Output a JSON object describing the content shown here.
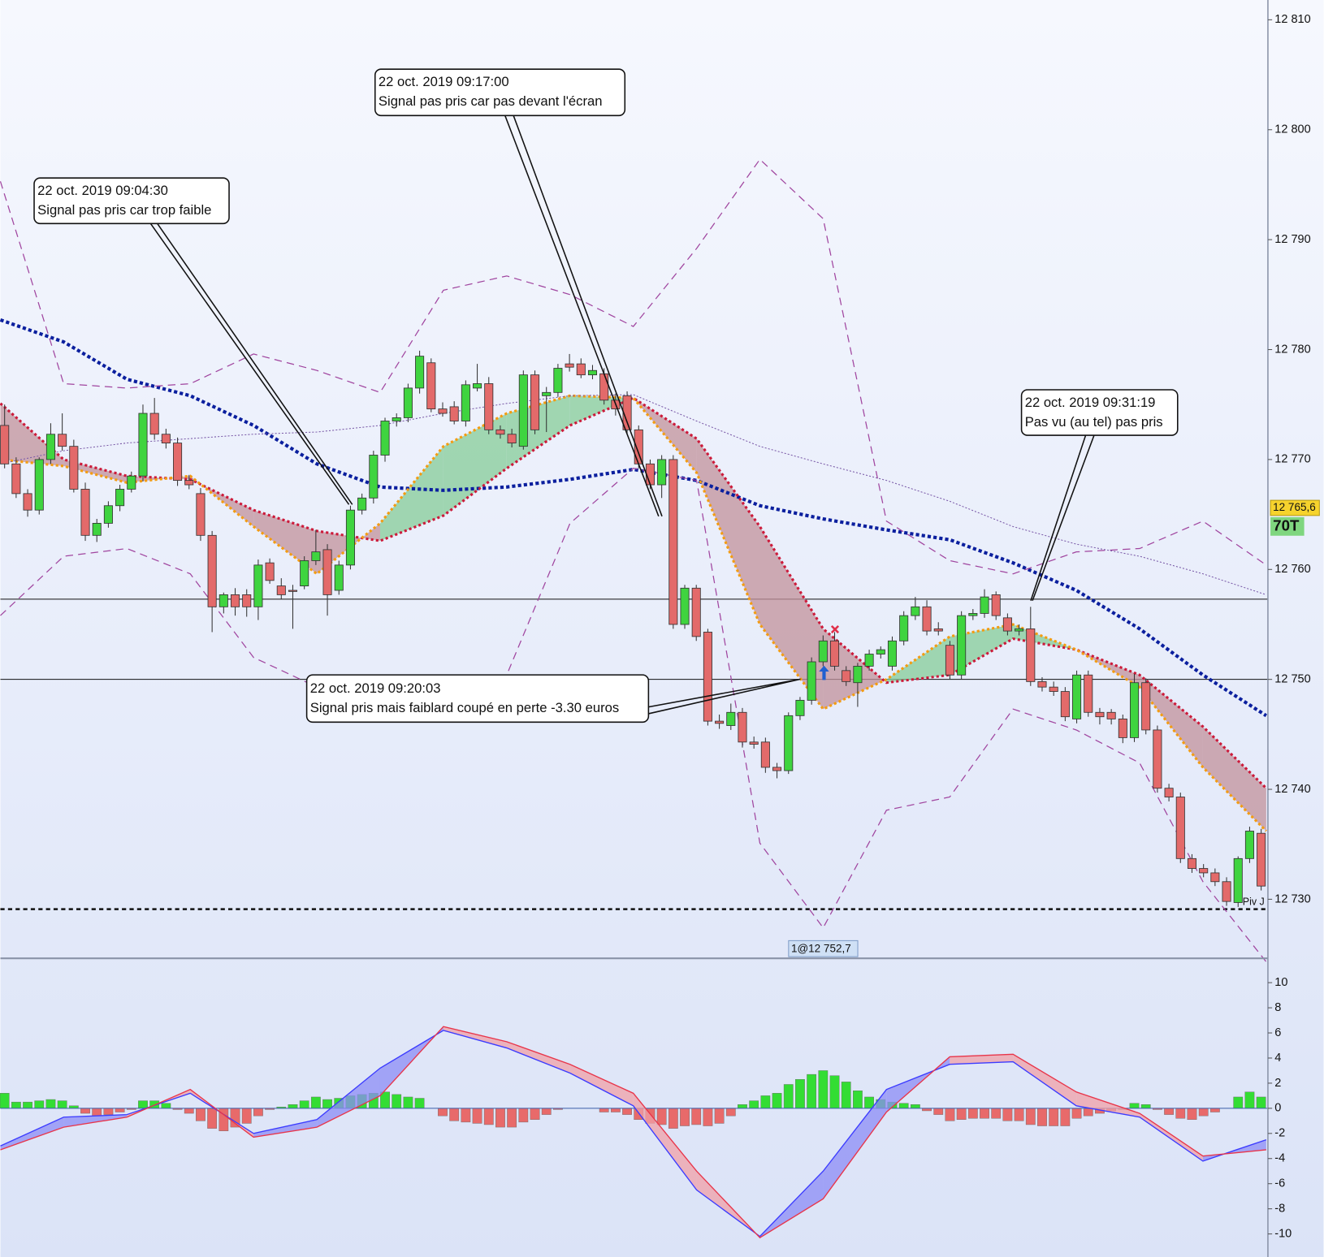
{
  "chart_data": [
    {
      "type": "candlestick",
      "ylim": [
        12724.7,
        12811.8
      ],
      "yticks": [
        {
          "value": 12730,
          "label": "12 730"
        },
        {
          "value": 12740,
          "label": "12 740"
        },
        {
          "value": 12750,
          "label": "12 750"
        },
        {
          "value": 12760,
          "label": "12 760"
        },
        {
          "value": 12770,
          "label": "12 770"
        },
        {
          "value": 12780,
          "label": "12 780"
        },
        {
          "value": 12790,
          "label": "12 790"
        },
        {
          "value": 12800,
          "label": "12 800"
        },
        {
          "value": 12810,
          "label": "12 810"
        }
      ],
      "up_color": "#3fd43f",
      "down_color": "#e36a6a",
      "open": [
        12773.1,
        12769.6,
        12766.9,
        12765.4,
        12770.0,
        12772.3,
        12771.2,
        12767.3,
        12763.1,
        12764.2,
        12765.8,
        12767.3,
        12768.5,
        12774.2,
        12772.3,
        12771.5,
        12768.1,
        12766.9,
        12763.1,
        12756.6,
        12757.7,
        12757.7,
        12756.6,
        12760.6,
        12758.5,
        12758.1,
        12758.5,
        12760.8,
        12761.8,
        12758.1,
        12760.4,
        12765.4,
        12766.5,
        12770.4,
        12773.5,
        12773.8,
        12776.5,
        12778.8,
        12774.6,
        12774.8,
        12773.5,
        12776.5,
        12776.9,
        12772.7,
        12772.3,
        12771.2,
        12777.7,
        12775.8,
        12776.1,
        12778.7,
        12778.7,
        12777.7,
        12777.8,
        12775.4,
        12775.8,
        12772.7,
        12769.6,
        12767.7,
        12770.0,
        12755.0,
        12758.3,
        12754.3,
        12746.2,
        12745.8,
        12747.0,
        12744.3,
        12744.3,
        12742.0,
        12741.7,
        12746.7,
        12748.1,
        12751.6,
        12753.5,
        12750.8,
        12749.7,
        12751.2,
        12752.3,
        12751.2,
        12753.5,
        12755.8,
        12756.6,
        12754.6,
        12753.1,
        12750.4,
        12755.8,
        12756.0,
        12757.7,
        12755.6,
        12754.4,
        12754.6,
        12749.8,
        12749.3,
        12748.9,
        12746.4,
        12750.4,
        12747.0,
        12747.0,
        12746.4,
        12744.7,
        12749.7,
        12745.4,
        12740.1,
        12739.3,
        12733.7,
        12732.8,
        12732.4,
        12731.6,
        12729.7,
        12733.7,
        12736.0
      ],
      "high": [
        12775.0,
        12770.2,
        12767.3,
        12770.2,
        12773.3,
        12774.2,
        12771.8,
        12767.9,
        12764.6,
        12766.2,
        12767.7,
        12768.9,
        12775.0,
        12775.6,
        12772.8,
        12772.0,
        12768.6,
        12767.4,
        12763.5,
        12757.9,
        12758.3,
        12758.2,
        12760.9,
        12761.0,
        12759.2,
        12758.6,
        12761.2,
        12763.6,
        12762.3,
        12760.8,
        12765.8,
        12766.9,
        12770.8,
        12773.8,
        12774.2,
        12776.9,
        12779.9,
        12779.2,
        12775.2,
        12775.3,
        12777.2,
        12778.7,
        12777.5,
        12773.1,
        12772.8,
        12778.1,
        12778.1,
        12776.6,
        12778.7,
        12779.6,
        12779.2,
        12778.6,
        12778.3,
        12776.0,
        12776.2,
        12773.1,
        12770.0,
        12770.4,
        12770.4,
        12758.6,
        12758.6,
        12754.6,
        12746.8,
        12747.8,
        12747.4,
        12744.8,
        12744.7,
        12742.4,
        12747.0,
        12748.4,
        12752.0,
        12754.0,
        12754.3,
        12751.2,
        12751.5,
        12752.7,
        12753.0,
        12753.9,
        12756.2,
        12757.5,
        12757.2,
        12755.2,
        12753.5,
        12756.2,
        12756.4,
        12758.2,
        12758.0,
        12756.0,
        12755.0,
        12756.6,
        12750.2,
        12749.8,
        12749.3,
        12750.8,
        12750.8,
        12747.4,
        12747.3,
        12746.8,
        12750.5,
        12750.1,
        12745.8,
        12740.5,
        12739.7,
        12734.1,
        12733.2,
        12732.8,
        12732.0,
        12733.9,
        12736.6,
        12736.4
      ],
      "low": [
        12769.2,
        12766.5,
        12764.8,
        12765.0,
        12769.6,
        12770.8,
        12767.0,
        12762.6,
        12762.5,
        12763.8,
        12765.3,
        12767.0,
        12768.0,
        12771.8,
        12771.0,
        12767.6,
        12767.3,
        12762.6,
        12754.3,
        12756.0,
        12755.8,
        12755.7,
        12755.4,
        12758.7,
        12757.3,
        12754.6,
        12758.2,
        12760.4,
        12755.8,
        12757.7,
        12760.0,
        12765.0,
        12766.0,
        12769.8,
        12773.0,
        12773.4,
        12776.0,
        12774.3,
        12773.9,
        12773.2,
        12773.0,
        12776.2,
        12772.3,
        12771.9,
        12771.1,
        12770.9,
        12772.3,
        12772.5,
        12775.7,
        12778.0,
        12777.4,
        12777.3,
        12775.0,
        12774.0,
        12772.3,
        12769.2,
        12767.3,
        12766.5,
        12754.6,
        12754.6,
        12753.5,
        12745.8,
        12745.5,
        12745.4,
        12743.8,
        12743.7,
        12741.5,
        12741.0,
        12741.4,
        12746.3,
        12747.7,
        12751.2,
        12750.8,
        12749.4,
        12747.5,
        12750.8,
        12751.9,
        12750.8,
        12753.1,
        12755.4,
        12754.0,
        12754.0,
        12750.0,
        12750.0,
        12755.4,
        12755.6,
        12755.4,
        12754.0,
        12754.0,
        12749.4,
        12748.9,
        12748.5,
        12746.2,
        12746.0,
        12746.6,
        12745.9,
        12745.9,
        12744.2,
        12744.3,
        12745.0,
        12739.7,
        12738.9,
        12733.3,
        12732.4,
        12732.0,
        12731.2,
        12729.4,
        12729.3,
        12733.3,
        12730.8
      ],
      "close": [
        12769.6,
        12766.9,
        12765.4,
        12770.0,
        12772.3,
        12771.2,
        12767.3,
        12763.1,
        12764.2,
        12765.8,
        12767.3,
        12768.5,
        12774.2,
        12772.3,
        12771.5,
        12768.1,
        12767.7,
        12763.1,
        12756.6,
        12757.7,
        12756.6,
        12756.6,
        12760.4,
        12759.0,
        12757.7,
        12758.0,
        12760.8,
        12761.6,
        12757.7,
        12760.4,
        12765.4,
        12766.5,
        12770.4,
        12773.5,
        12773.8,
        12776.5,
        12779.4,
        12774.6,
        12774.2,
        12773.5,
        12776.8,
        12776.9,
        12772.7,
        12772.3,
        12771.5,
        12777.7,
        12772.7,
        12776.1,
        12778.3,
        12778.4,
        12777.7,
        12778.1,
        12775.4,
        12774.6,
        12772.7,
        12769.6,
        12767.7,
        12770.0,
        12755.0,
        12758.3,
        12753.9,
        12746.2,
        12746.0,
        12747.0,
        12744.3,
        12744.1,
        12742.0,
        12741.7,
        12746.7,
        12748.1,
        12751.6,
        12753.5,
        12751.2,
        12749.8,
        12751.2,
        12752.3,
        12752.7,
        12753.5,
        12755.8,
        12756.6,
        12754.4,
        12754.4,
        12750.4,
        12755.8,
        12756.0,
        12757.5,
        12755.8,
        12754.4,
        12754.6,
        12749.8,
        12749.3,
        12748.9,
        12746.6,
        12750.4,
        12747.0,
        12746.6,
        12746.4,
        12744.7,
        12749.7,
        12745.4,
        12740.1,
        12739.3,
        12733.7,
        12732.8,
        12732.4,
        12731.6,
        12729.8,
        12733.7,
        12736.2,
        12731.2
      ],
      "lines": [
        {
          "color": "#0b1f9e",
          "style": "dotted-thick",
          "values": [
            12782.7,
            12780.7,
            12777.3,
            12775.8,
            12773.1,
            12769.6,
            12767.5,
            12767.2,
            12767.5,
            12768.2,
            12769.1,
            12768.1,
            12765.8,
            12764.6,
            12763.6,
            12762.7,
            12760.6,
            12758.1,
            12754.6,
            12750.4,
            12746.7
          ]
        },
        {
          "color": "#cc1a3a",
          "style": "dotted",
          "values": [
            12775.1,
            12770.0,
            12768.5,
            12768.2,
            12765.4,
            12763.5,
            12762.6,
            12764.9,
            12769.2,
            12773.1,
            12775.6,
            12771.9,
            12763.9,
            12754.6,
            12749.7,
            12750.4,
            12753.7,
            12752.7,
            12750.4,
            12745.7,
            12740.1
          ]
        },
        {
          "color": "#f39c12",
          "style": "dotted",
          "values": [
            12770.0,
            12769.4,
            12767.9,
            12768.5,
            12763.9,
            12759.6,
            12764.2,
            12771.2,
            12774.2,
            12775.8,
            12775.6,
            12768.8,
            12755.0,
            12747.3,
            12750.0,
            12753.9,
            12755.0,
            12752.7,
            12749.3,
            12742.0,
            12736.2
          ]
        },
        {
          "color": "#a0459f",
          "style": "dashed",
          "values": [
            12795.3,
            12776.9,
            12776.5,
            12776.9,
            12779.6,
            12778.1,
            12776.1,
            12785.4,
            12786.7,
            12785.0,
            12782.1,
            12789.2,
            12797.3,
            12791.9,
            12764.4,
            12760.8,
            12759.6,
            12761.6,
            12761.9,
            12764.4,
            12760.4
          ]
        },
        {
          "color": "#a0459f",
          "style": "dashed",
          "values": [
            12755.8,
            12761.2,
            12761.9,
            12759.6,
            12752.0,
            12749.3,
            12747.3,
            12746.2,
            12750.4,
            12764.2,
            12769.2,
            12768.1,
            12735.1,
            12727.4,
            12738.1,
            12739.3,
            12747.3,
            12745.4,
            12742.4,
            12731.6,
            12724.3
          ]
        },
        {
          "color": "#7a5aa8",
          "style": "thin-dotted",
          "values": [
            12769.6,
            12770.8,
            12771.5,
            12771.9,
            12772.3,
            12772.5,
            12773.1,
            12774.2,
            12775.1,
            12775.8,
            12775.9,
            12773.5,
            12771.2,
            12769.6,
            12768.1,
            12766.2,
            12763.9,
            12762.3,
            12761.2,
            12759.6,
            12757.7
          ]
        }
      ],
      "fill_colors": [
        "#86cc98",
        "#c2919b"
      ],
      "levels": [
        {
          "value": 12757.3,
          "style": "solid"
        },
        {
          "value": 12750,
          "style": "solid"
        },
        {
          "value": 12729.1,
          "style": "dashed"
        }
      ],
      "pivot_label": "Piv J",
      "last_price": {
        "value": 12765.6,
        "label": "12 765,6"
      },
      "timeframe": "70T",
      "order_label": "1@12 752,7",
      "annotations": [
        {
          "date": "22 oct. 2019 09:04:30",
          "text": "Signal pas pris car trop faible"
        },
        {
          "date": "22 oct. 2019 09:17:00",
          "text": "Signal pas pris car pas devant l'écran"
        },
        {
          "date": "22 oct. 2019 09:20:03",
          "text": "Signal pris mais faiblard coupé en perte -3.30 euros"
        },
        {
          "date": "22 oct. 2019 09:31:19",
          "text": "Pas vu (au tel) pas pris"
        }
      ]
    },
    {
      "type": "macd",
      "ylim": [
        -11.5,
        11.8
      ],
      "yticks": [
        -10,
        -8,
        -6,
        -4,
        -2,
        0,
        2,
        4,
        6,
        8,
        10
      ],
      "histogram": {
        "up_color": "#33dd33",
        "down_color": "#e86a6a",
        "values": [
          1.2,
          0.5,
          0.5,
          0.6,
          0.7,
          0.6,
          0.2,
          -0.4,
          -0.6,
          -0.5,
          -0.3,
          -0.1,
          0.6,
          0.6,
          0.4,
          -0.1,
          -0.4,
          -1.0,
          -1.6,
          -1.8,
          -1.5,
          -1.2,
          -0.6,
          -0.1,
          0.1,
          0.3,
          0.6,
          0.9,
          0.7,
          0.8,
          1.0,
          1.1,
          1.2,
          1.3,
          1.1,
          0.9,
          0.8,
          0.0,
          -0.6,
          -1.0,
          -1.1,
          -1.2,
          -1.3,
          -1.5,
          -1.5,
          -1.1,
          -0.9,
          -0.5,
          -0.1,
          0.0,
          0.0,
          0.0,
          -0.3,
          -0.3,
          -0.5,
          -0.9,
          -1.2,
          -1.3,
          -1.6,
          -1.4,
          -1.3,
          -1.4,
          -1.2,
          -0.6,
          0.3,
          0.6,
          1.0,
          1.2,
          1.9,
          2.3,
          2.7,
          3.0,
          2.6,
          2.1,
          1.4,
          0.9,
          0.7,
          0.5,
          0.4,
          0.3,
          -0.2,
          -0.5,
          -1.0,
          -0.9,
          -0.8,
          -0.8,
          -0.8,
          -1.0,
          -1.0,
          -1.3,
          -1.4,
          -1.4,
          -1.4,
          -0.8,
          -0.6,
          -0.4,
          -0.2,
          -0.1,
          0.4,
          0.3,
          -0.1,
          -0.5,
          -0.8,
          -0.9,
          -0.6,
          -0.3,
          0.0,
          0.9,
          1.3,
          0.9
        ]
      },
      "series": [
        {
          "color": "#3b3bff",
          "values": [
            -3.0,
            -0.7,
            -0.5,
            1.2,
            -2.0,
            -0.9,
            3.2,
            6.2,
            4.8,
            2.8,
            0.2,
            -6.5,
            -10.2,
            -5.0,
            1.5,
            3.5,
            3.7,
            0.2,
            -0.7,
            -4.2,
            -2.5
          ]
        },
        {
          "color": "#e8354a",
          "values": [
            -3.3,
            -1.5,
            -0.7,
            1.5,
            -2.3,
            -1.5,
            1.0,
            6.5,
            5.3,
            3.5,
            1.2,
            -5.0,
            -10.3,
            -7.2,
            -0.3,
            4.1,
            4.3,
            1.3,
            -0.4,
            -3.8,
            -3.3
          ]
        }
      ],
      "fill_colors": [
        "#8c8cf5",
        "#f0a0a8"
      ]
    }
  ]
}
